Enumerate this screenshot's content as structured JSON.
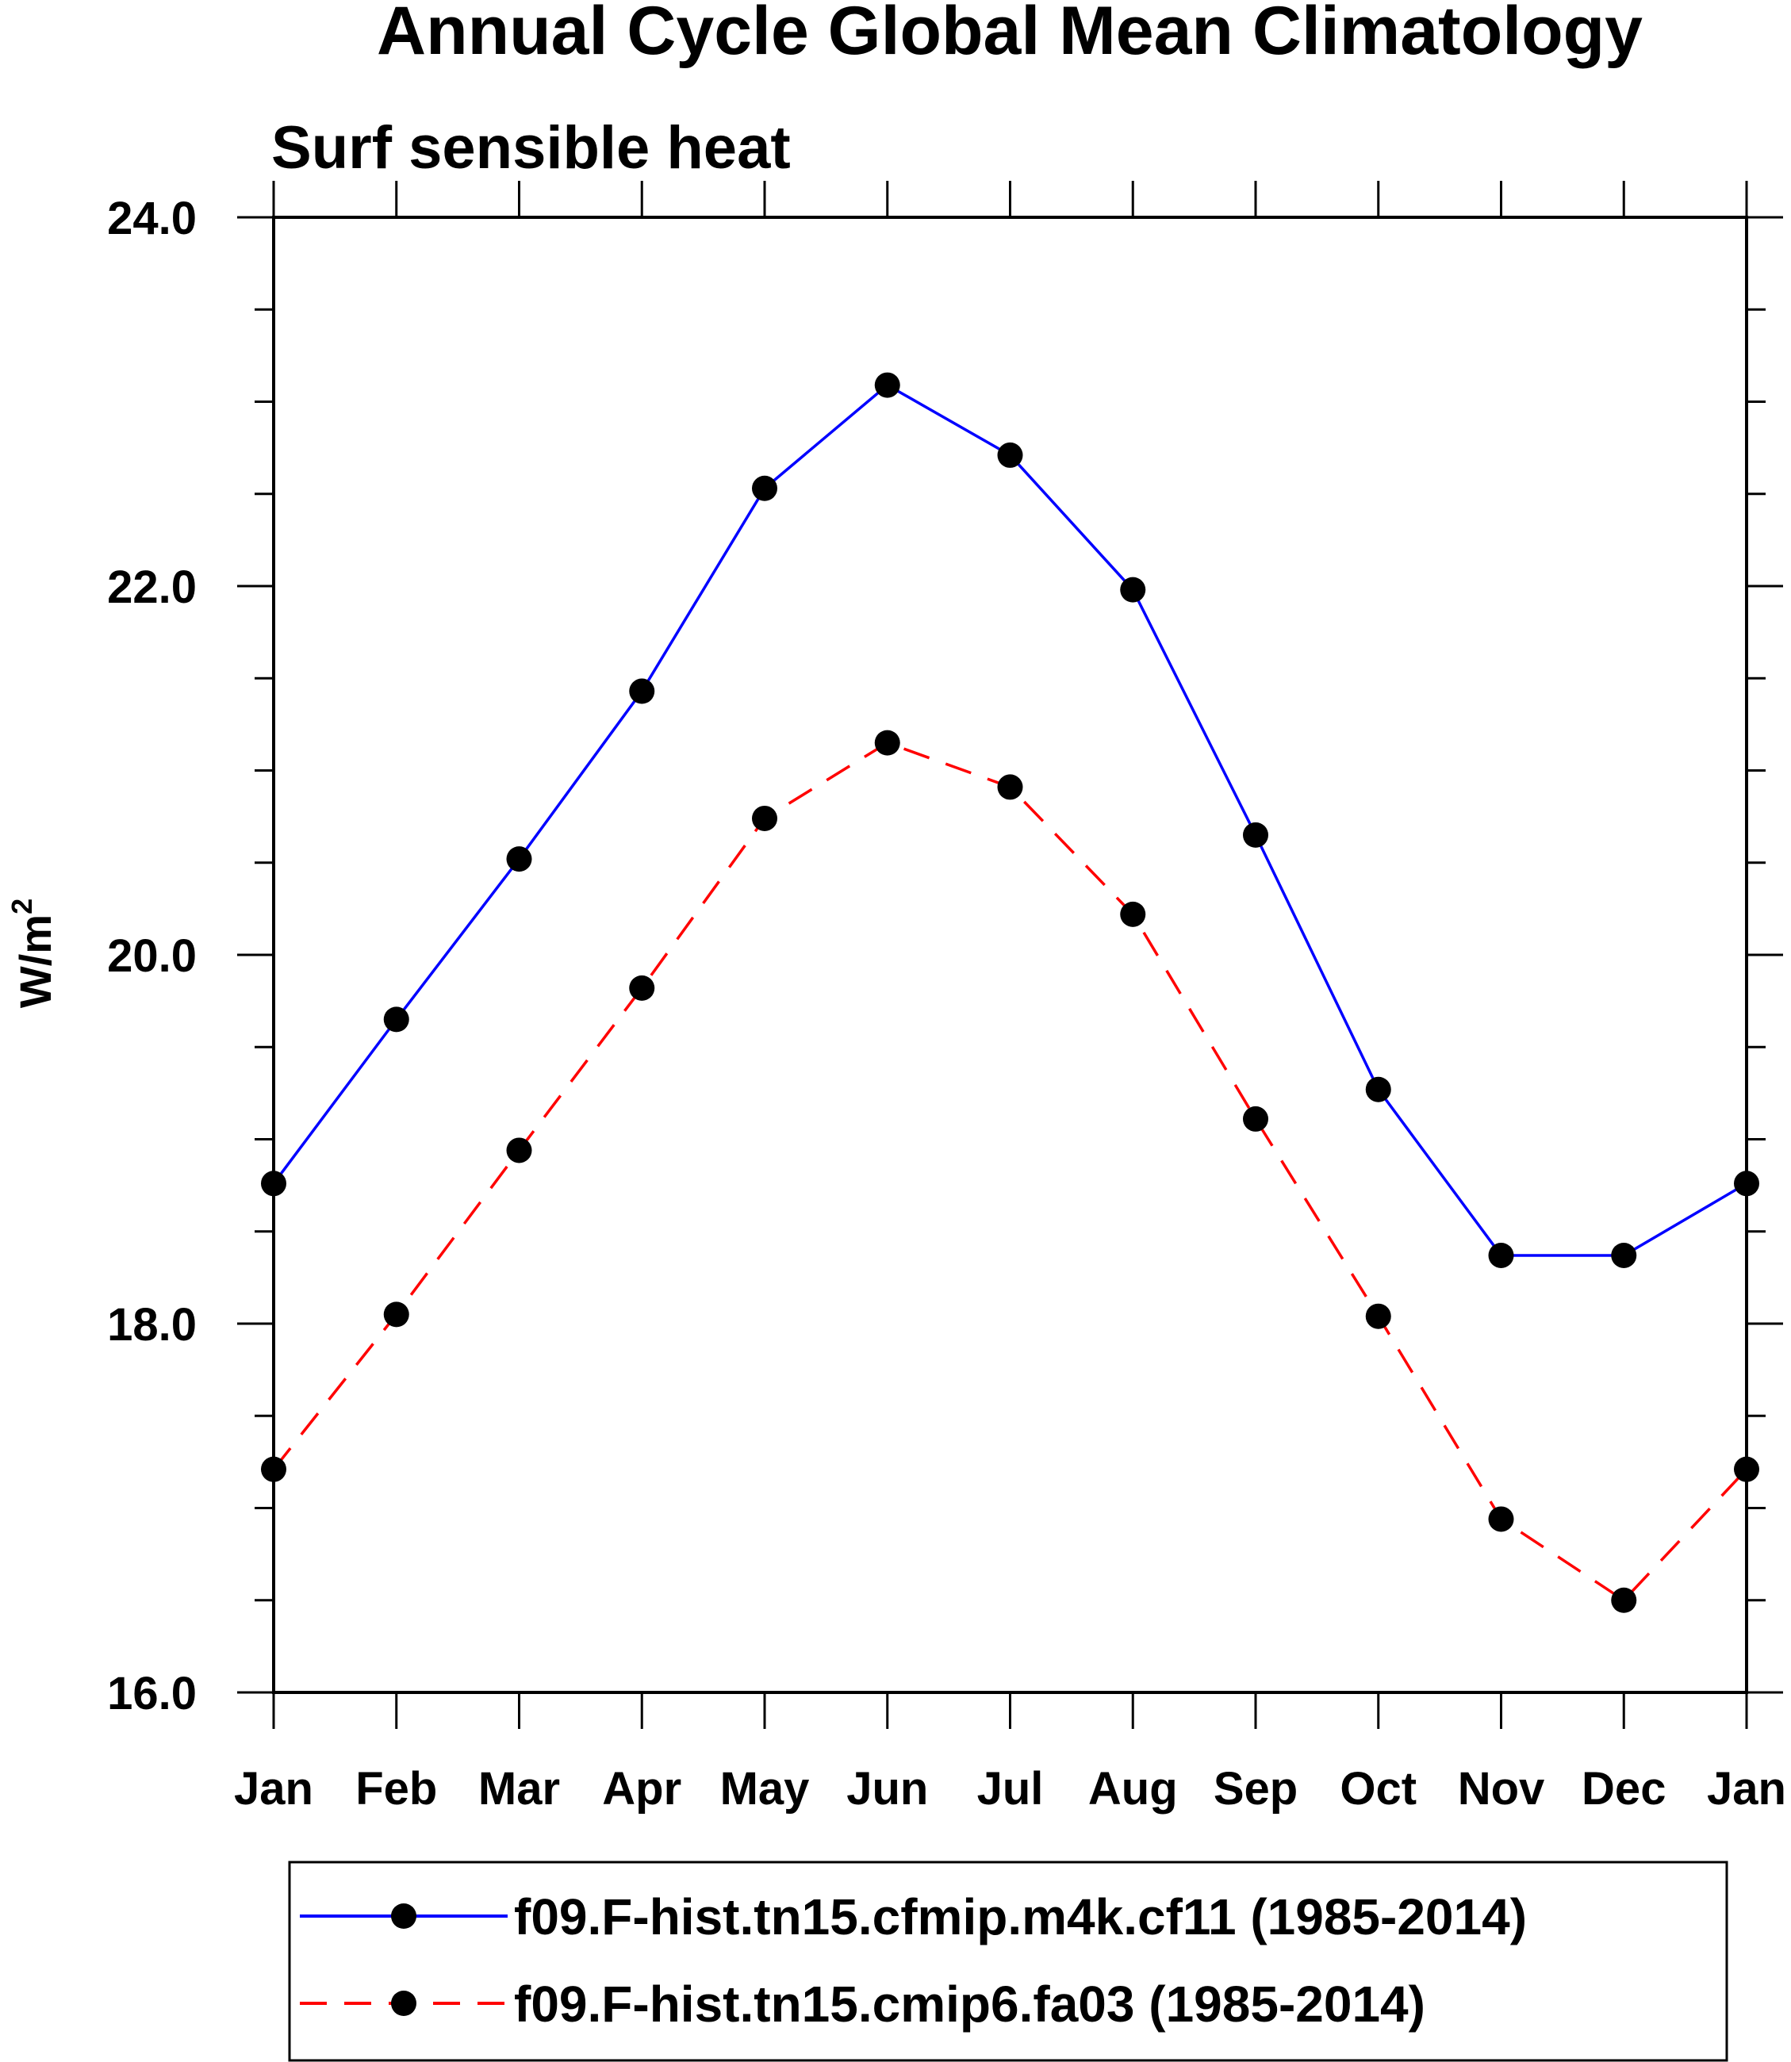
{
  "chart_data": {
    "type": "line",
    "title": "Annual Cycle Global Mean Climatology",
    "subtitle": "Surf sensible heat",
    "xlabel": "",
    "ylabel": "W/m",
    "ylabel_superscript": "2",
    "categories": [
      "Jan",
      "Feb",
      "Mar",
      "Apr",
      "May",
      "Jun",
      "Jul",
      "Aug",
      "Sep",
      "Oct",
      "Nov",
      "Dec",
      "Jan"
    ],
    "ylim": [
      16.0,
      24.0
    ],
    "yticks": [
      "16.0",
      "18.0",
      "20.0",
      "22.0",
      "24.0"
    ],
    "yminor_step": 0.5,
    "grid": false,
    "legend_position": "bottom",
    "series": [
      {
        "name": "f09.F-hist.tn15.cfmip.m4k.cf11 (1985-2014)",
        "color": "#0000ff",
        "dash": "solid",
        "marker": "filled-circle",
        "values": [
          18.76,
          19.65,
          20.52,
          21.43,
          22.53,
          23.09,
          22.71,
          21.98,
          20.65,
          19.27,
          18.37,
          18.37,
          18.76
        ]
      },
      {
        "name": "f09.F-hist.tn15.cmip6.fa03 (1985-2014)",
        "color": "#ff0000",
        "dash": "dashed",
        "marker": "filled-circle",
        "values": [
          17.21,
          18.05,
          18.94,
          19.82,
          20.74,
          21.15,
          20.91,
          20.22,
          19.11,
          18.04,
          16.94,
          16.5,
          17.21
        ]
      }
    ]
  }
}
